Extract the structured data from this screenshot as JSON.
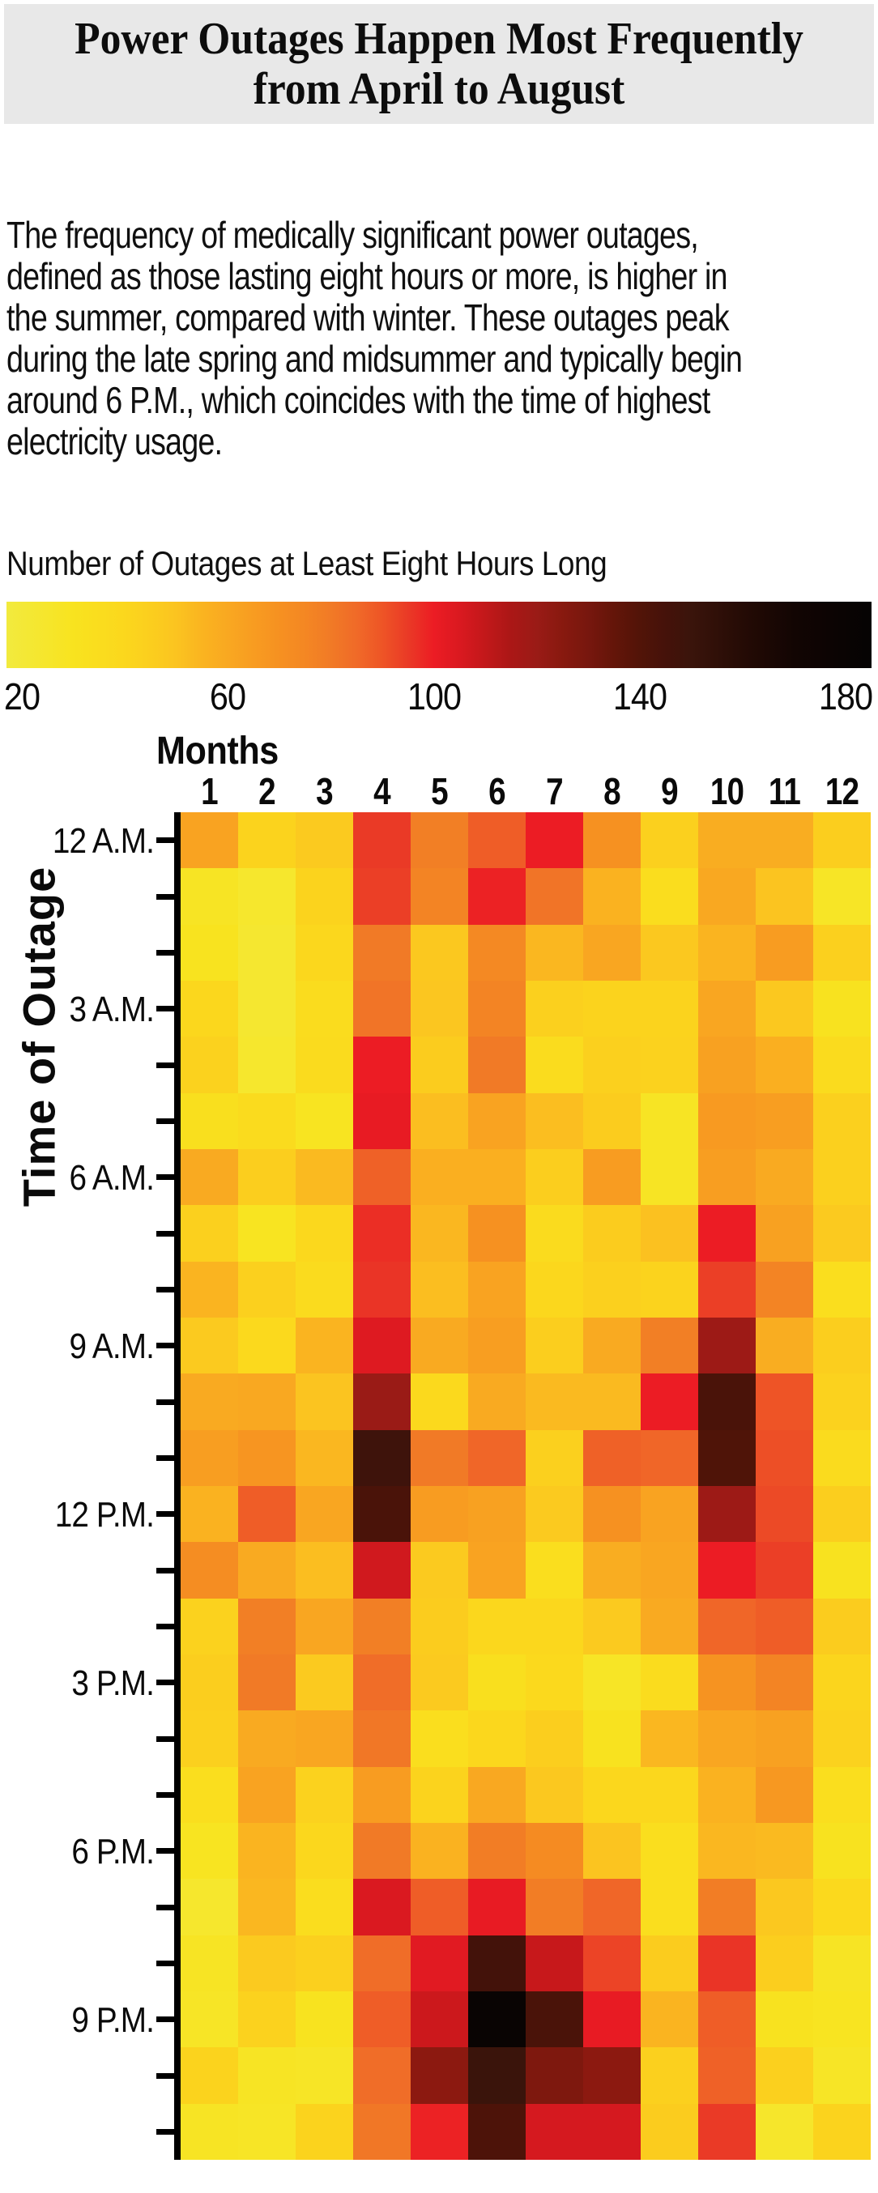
{
  "header": {
    "title_lines": [
      "Power Outages Happen Most Frequently",
      "from April to August"
    ]
  },
  "intro": {
    "lines": [
      "The frequency of medically significant power outages,",
      "defined as those lasting eight hours or more, is higher in",
      "the summer, compared with winter. These outages peak",
      "during the late spring and midsummer and typically begin",
      "around 6 P.M., which coincides with the time of highest",
      "electricity usage."
    ]
  },
  "legend": {
    "title": "Number of Outages at Least Eight Hours Long",
    "tick_values": [
      20,
      60,
      100,
      140,
      180
    ]
  },
  "chart_data": {
    "type": "heatmap",
    "title": "Number of Outages at Least Eight Hours Long",
    "xlabel": "Months",
    "ylabel": "Time of Outage",
    "x_labels": [
      "1",
      "2",
      "3",
      "4",
      "5",
      "6",
      "7",
      "8",
      "9",
      "10",
      "11",
      "12"
    ],
    "y_tick_labels": [
      "12 A.M.",
      "3 A.M.",
      "6 A.M.",
      "9 A.M.",
      "12 P.M.",
      "3 P.M.",
      "6 P.M.",
      "9 P.M."
    ],
    "y_tick_rows": [
      0,
      3,
      6,
      9,
      12,
      15,
      18,
      21
    ],
    "rows": 24,
    "cols": 12,
    "value_range": [
      17,
      185
    ],
    "legend_ticks": [
      20,
      60,
      100,
      140,
      180
    ],
    "values": [
      [
        62,
        42,
        47,
        95,
        78,
        88,
        100,
        70,
        44,
        58,
        58,
        45
      ],
      [
        28,
        24,
        42,
        94,
        76,
        99,
        82,
        56,
        35,
        60,
        50,
        27
      ],
      [
        30,
        23,
        40,
        80,
        48,
        74,
        54,
        61,
        48,
        55,
        65,
        44
      ],
      [
        40,
        23,
        36,
        82,
        49,
        76,
        44,
        42,
        42,
        61,
        48,
        31
      ],
      [
        43,
        24,
        37,
        100,
        46,
        80,
        36,
        44,
        43,
        63,
        57,
        37
      ],
      [
        33,
        37,
        29,
        101,
        52,
        62,
        52,
        46,
        28,
        66,
        64,
        44
      ],
      [
        59,
        45,
        53,
        87,
        57,
        57,
        45,
        65,
        28,
        64,
        59,
        44
      ],
      [
        44,
        29,
        39,
        97,
        54,
        70,
        37,
        46,
        51,
        100,
        63,
        47
      ],
      [
        55,
        44,
        37,
        96,
        52,
        62,
        40,
        44,
        42,
        94,
        76,
        34
      ],
      [
        47,
        38,
        55,
        104,
        59,
        64,
        45,
        59,
        78,
        119,
        58,
        45
      ],
      [
        59,
        60,
        50,
        120,
        38,
        59,
        53,
        53,
        100,
        143,
        90,
        43
      ],
      [
        64,
        68,
        54,
        148,
        80,
        86,
        44,
        87,
        86,
        141,
        91,
        37
      ],
      [
        56,
        88,
        61,
        143,
        65,
        63,
        47,
        70,
        62,
        119,
        92,
        45
      ],
      [
        72,
        59,
        52,
        107,
        47,
        62,
        34,
        58,
        61,
        100,
        94,
        31
      ],
      [
        43,
        78,
        61,
        78,
        46,
        40,
        40,
        47,
        59,
        86,
        88,
        46
      ],
      [
        45,
        80,
        47,
        84,
        47,
        33,
        38,
        27,
        36,
        69,
        76,
        41
      ],
      [
        44,
        59,
        61,
        81,
        34,
        40,
        45,
        31,
        54,
        61,
        63,
        43
      ],
      [
        34,
        62,
        43,
        65,
        42,
        60,
        48,
        40,
        40,
        56,
        67,
        34
      ],
      [
        29,
        55,
        40,
        80,
        56,
        79,
        73,
        50,
        34,
        54,
        53,
        31
      ],
      [
        24,
        54,
        35,
        105,
        88,
        101,
        79,
        86,
        34,
        79,
        48,
        38
      ],
      [
        28,
        47,
        44,
        84,
        103,
        146,
        109,
        93,
        46,
        96,
        45,
        28
      ],
      [
        27,
        43,
        30,
        88,
        108,
        180,
        143,
        101,
        55,
        88,
        31,
        29
      ],
      [
        42,
        28,
        27,
        84,
        124,
        150,
        128,
        124,
        44,
        87,
        44,
        27
      ],
      [
        28,
        27,
        42,
        81,
        99,
        142,
        106,
        106,
        46,
        95,
        25,
        42
      ]
    ],
    "colormap": [
      [
        17,
        "#F2EA3E"
      ],
      [
        25,
        "#F6E62B"
      ],
      [
        30,
        "#F8E31F"
      ],
      [
        35,
        "#FADD1E"
      ],
      [
        40,
        "#FBD71D"
      ],
      [
        45,
        "#FBCE1E"
      ],
      [
        50,
        "#FBC420"
      ],
      [
        55,
        "#FAB420"
      ],
      [
        60,
        "#F9A821"
      ],
      [
        65,
        "#F89C21"
      ],
      [
        70,
        "#F69121"
      ],
      [
        75,
        "#F48723"
      ],
      [
        80,
        "#F17A26"
      ],
      [
        85,
        "#F06A28"
      ],
      [
        90,
        "#EE5426"
      ],
      [
        95,
        "#EA3A26"
      ],
      [
        100,
        "#EC1C24"
      ],
      [
        105,
        "#DA1920"
      ],
      [
        110,
        "#C2181A"
      ],
      [
        115,
        "#AB1716"
      ],
      [
        120,
        "#9A1B16"
      ],
      [
        125,
        "#88190F"
      ],
      [
        130,
        "#77170E"
      ],
      [
        135,
        "#641509"
      ],
      [
        140,
        "#521408"
      ],
      [
        145,
        "#45120A"
      ],
      [
        150,
        "#3A140B"
      ],
      [
        160,
        "#250B05"
      ],
      [
        170,
        "#120503"
      ],
      [
        185,
        "#050303"
      ]
    ],
    "axis_color": "#000000",
    "banner_bg": "#e8e8e8",
    "grid": false,
    "legend_position": "top"
  }
}
